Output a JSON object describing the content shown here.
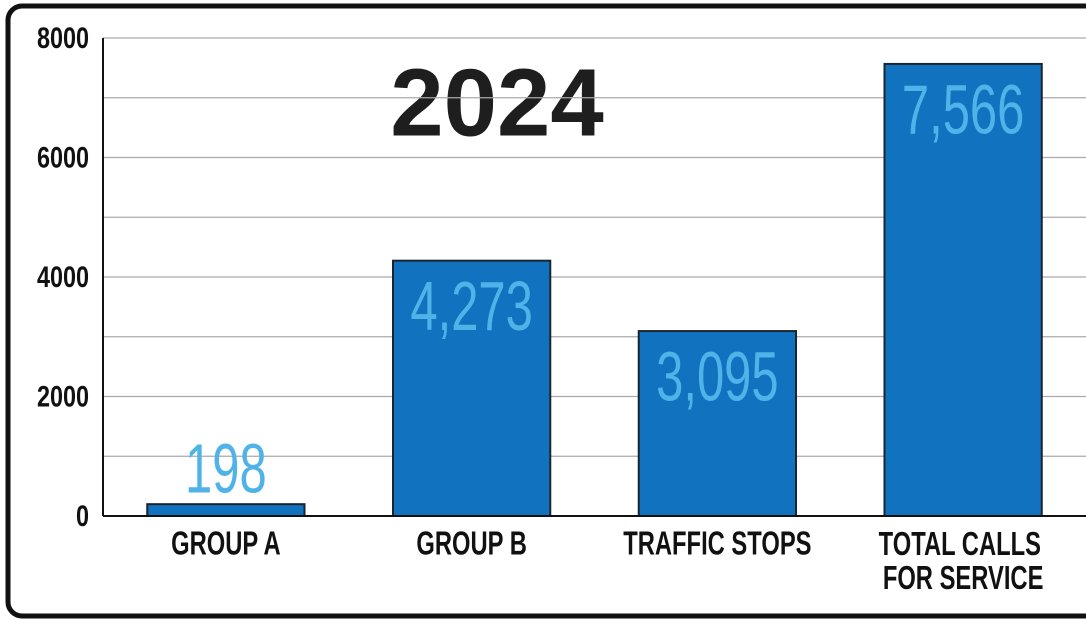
{
  "chart_data": {
    "type": "bar",
    "title": "2024",
    "categories": [
      "GROUP A",
      "GROUP B",
      "TRAFFIC STOPS",
      "TOTAL CALLS FOR SERVICE"
    ],
    "values": [
      198,
      4273,
      3095,
      7566
    ],
    "value_labels": [
      "198",
      "4,273",
      "3,095",
      "7,566"
    ],
    "color": "#1172c0",
    "label_color": "#4fb3e8",
    "ylim": [
      0,
      8000
    ],
    "yticks": [
      0,
      2000,
      4000,
      6000,
      8000
    ],
    "minor_yticks": [
      1000,
      3000,
      5000,
      7000
    ],
    "grid": true
  }
}
